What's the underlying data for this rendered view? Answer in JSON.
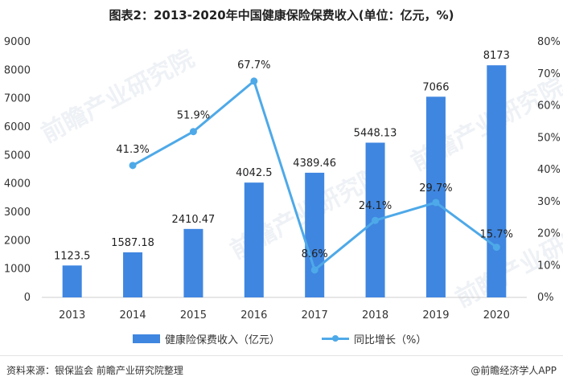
{
  "title": "图表2：2013-2020年中国健康保险保费收入(单位：亿元，%)",
  "source": "资料来源：银保监会 前瞻产业研究院整理",
  "brand": "@前瞻经济学人APP",
  "watermark": "前瞻产业研究院",
  "colors": {
    "bar": "#3f86e0",
    "line": "#4ea9e8",
    "axis": "#cccccc"
  },
  "chart_data": {
    "type": "bar",
    "categories": [
      "2013",
      "2014",
      "2015",
      "2016",
      "2017",
      "2018",
      "2019",
      "2020"
    ],
    "series": [
      {
        "name": "健康险保费收入（亿元）",
        "type": "bar",
        "axis": "left",
        "values": [
          1123.5,
          1587.18,
          2410.47,
          4042.5,
          4389.46,
          5448.13,
          7066,
          8173
        ],
        "labels": [
          "1123.5",
          "1587.18",
          "2410.47",
          "4042.5",
          "4389.46",
          "5448.13",
          "7066",
          "8173"
        ]
      },
      {
        "name": "同比增长（%）",
        "type": "line",
        "axis": "right",
        "values": [
          null,
          41.3,
          51.9,
          67.7,
          8.6,
          24.1,
          29.7,
          15.7
        ],
        "labels": [
          "",
          "41.3%",
          "51.9%",
          "67.7%",
          "8.6%",
          "24.1%",
          "29.7%",
          "15.7%"
        ]
      }
    ],
    "y_left": {
      "ylim": [
        0,
        9000
      ],
      "ticks": [
        0,
        1000,
        2000,
        3000,
        4000,
        5000,
        6000,
        7000,
        8000,
        9000
      ],
      "tick_labels": [
        "0",
        "1000",
        "2000",
        "3000",
        "4000",
        "5000",
        "6000",
        "7000",
        "8000",
        "9000"
      ]
    },
    "y_right": {
      "ylim": [
        0,
        80
      ],
      "ticks": [
        0,
        10,
        20,
        30,
        40,
        50,
        60,
        70,
        80
      ],
      "tick_labels": [
        "0%",
        "10%",
        "20%",
        "30%",
        "40%",
        "50%",
        "60%",
        "70%",
        "80%"
      ]
    },
    "grid": false,
    "legend": "bottom"
  }
}
